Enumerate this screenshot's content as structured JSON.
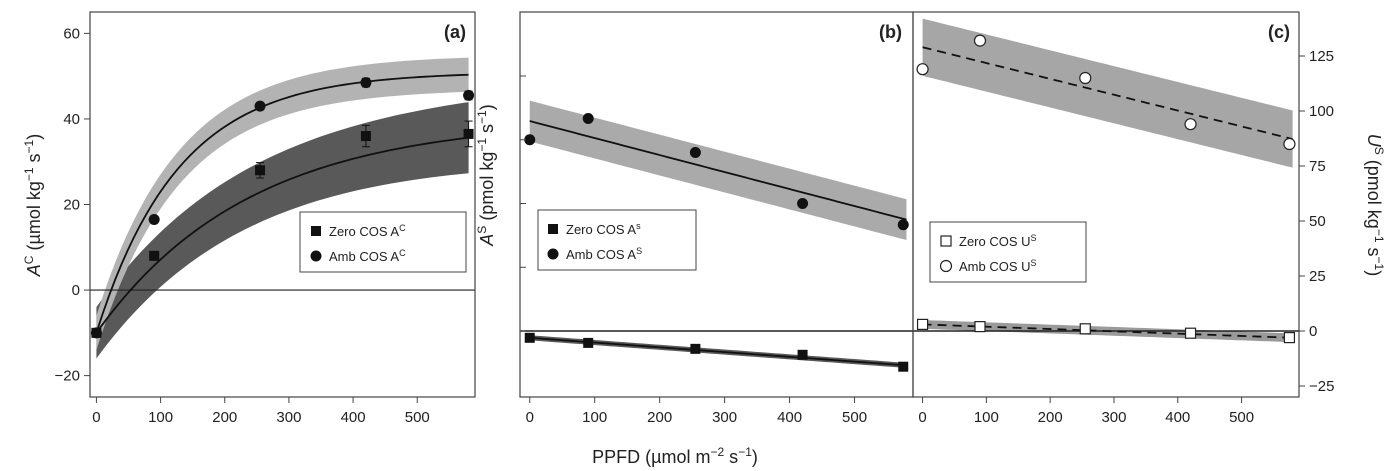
{
  "chart_data": [
    {
      "panel": "(a)",
      "type": "scatter",
      "xlabel": "",
      "ylabel": "A^C (µmol kg⁻¹ s⁻¹)",
      "ylabel_parts": [
        "A",
        "C",
        " (µmol kg",
        "−1",
        " s",
        "−1",
        ")"
      ],
      "xlim": [
        -10,
        590
      ],
      "ylim": [
        -25,
        65
      ],
      "xticks": [
        0,
        100,
        200,
        300,
        400,
        500
      ],
      "yticks": [
        -20,
        0,
        20,
        40,
        60
      ],
      "zero_line": true,
      "legend": "center-right",
      "series": [
        {
          "name": "Zero COS A^C",
          "label_parts": [
            "Zero COS A",
            "C"
          ],
          "marker": "square-filled",
          "x": [
            0,
            90,
            255,
            420,
            580
          ],
          "y": [
            -10,
            8,
            28,
            36,
            36.5
          ],
          "err": [
            1,
            0.8,
            1.8,
            2.5,
            3
          ],
          "fit": {
            "model": "exp_rise",
            "a": 40,
            "b": 50,
            "k": 0.0042
          },
          "band": {
            "color": "#595959",
            "width_base": 6,
            "width_slope": 0.004
          }
        },
        {
          "name": "Amb COS A^C",
          "label_parts": [
            "Amb COS A",
            "C"
          ],
          "marker": "circle-filled",
          "x": [
            0,
            90,
            255,
            420,
            580
          ],
          "y": [
            -10,
            16.5,
            43,
            48.5,
            45.5
          ],
          "err": [
            0.8,
            0.8,
            0.8,
            1,
            1
          ],
          "fit": {
            "model": "exp_rise",
            "a": 51,
            "b": 61,
            "k": 0.0078
          },
          "band": {
            "color": "#b3b3b3",
            "width_base": 4,
            "width_slope": 0
          }
        }
      ]
    },
    {
      "panel": "(b)",
      "type": "scatter",
      "xlabel": "",
      "ylabel": "A^S (pmol kg⁻¹ s⁻¹)",
      "ylabel_parts": [
        "A",
        "S",
        " (pmol kg",
        "−1",
        " s",
        "−1",
        ")"
      ],
      "xlim": [
        -15,
        590
      ],
      "xticks": [
        0,
        100,
        200,
        300,
        400,
        500
      ],
      "zero_line": true,
      "legend": "center-left",
      "series": [
        {
          "name": "Zero COS A^s",
          "label_parts": [
            "Zero COS A",
            "s"
          ],
          "marker": "square-filled",
          "x": [
            0,
            90,
            255,
            420,
            575
          ],
          "y": [
            -8,
            -14,
            -21,
            -28,
            -42
          ],
          "fit": {
            "model": "linear",
            "intercept": -8,
            "slope": -0.056
          },
          "band": {
            "color": "#595959",
            "half_width": 3
          }
        },
        {
          "name": "Amb COS A^S",
          "label_parts": [
            "Amb COS A",
            "S"
          ],
          "marker": "circle-filled",
          "x": [
            0,
            90,
            255,
            420,
            575
          ],
          "y": [
            225,
            250,
            210,
            150,
            125
          ],
          "fit": {
            "model": "linear",
            "intercept": 247,
            "slope": -0.2
          },
          "band": {
            "color": "#aaaaaa",
            "half_width": 24
          }
        }
      ]
    },
    {
      "panel": "(c)",
      "type": "scatter",
      "xlabel": "",
      "ylabel": "U^S (pmol kg⁻¹ s⁻¹)",
      "ylabel_parts": [
        "U",
        "S",
        " (pmol kg",
        "−1",
        " s",
        "−1",
        ")"
      ],
      "xlim": [
        -15,
        590
      ],
      "ylim": [
        -30,
        145
      ],
      "xticks": [
        0,
        100,
        200,
        300,
        400,
        500
      ],
      "yticks": [
        -25,
        0,
        25,
        50,
        75,
        100,
        125
      ],
      "zero_line": true,
      "legend": "center-left",
      "series": [
        {
          "name": "Zero COS U^S",
          "label_parts": [
            "Zero COS U",
            "S"
          ],
          "marker": "square-open",
          "x": [
            0,
            90,
            255,
            420,
            575
          ],
          "y": [
            3,
            2,
            1,
            -1,
            -3
          ],
          "fit": {
            "model": "linear",
            "intercept": 3,
            "slope": -0.0105,
            "dashed": true
          },
          "band": {
            "color": "#9a9a9a",
            "half_width": 2
          }
        },
        {
          "name": "Amb COS U^S",
          "label_parts": [
            "Amb COS U",
            "S"
          ],
          "marker": "circle-open",
          "x": [
            0,
            90,
            255,
            420,
            575
          ],
          "y": [
            119,
            132,
            115,
            94,
            85
          ],
          "fit": {
            "model": "linear",
            "intercept": 129,
            "slope": -0.072,
            "dashed": true
          },
          "band": {
            "color": "#a6a6a6",
            "half_width": 13
          }
        }
      ]
    }
  ],
  "shared_xlabel": "PPFD (µmol m⁻² s⁻¹)",
  "shared_xlabel_parts": [
    "PPFD (µmol m",
    "−2",
    " s",
    "−1",
    ")"
  ]
}
